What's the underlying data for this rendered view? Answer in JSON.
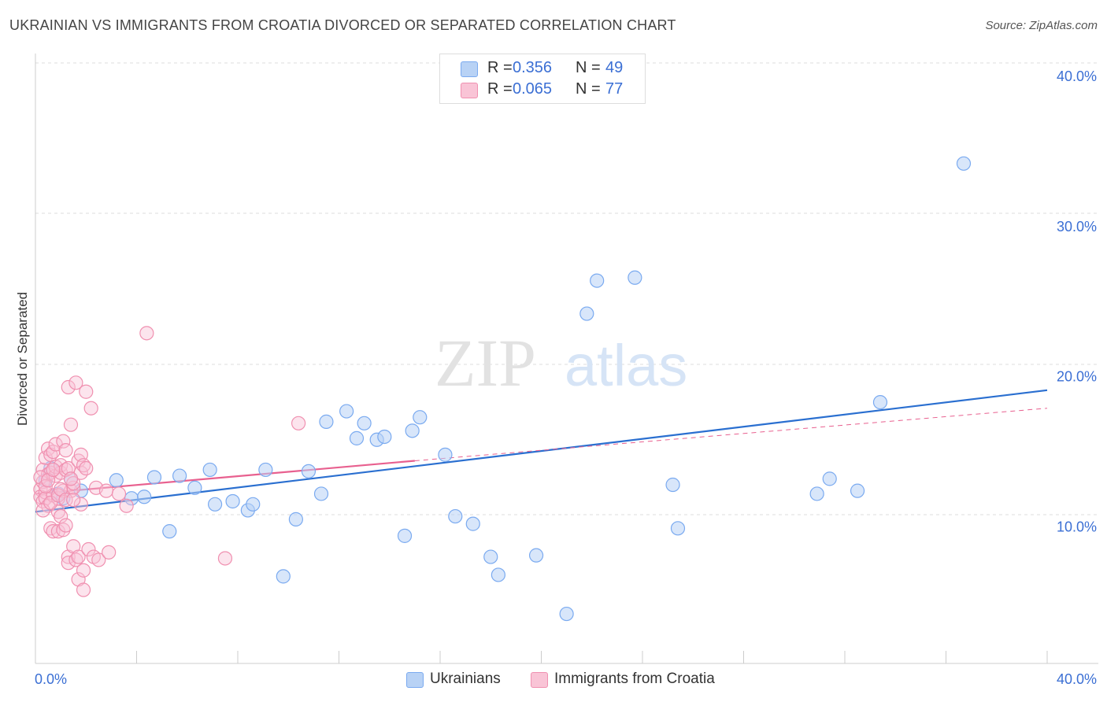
{
  "title": "UKRAINIAN VS IMMIGRANTS FROM CROATIA DIVORCED OR SEPARATED CORRELATION CHART",
  "source": "Source: ZipAtlas.com",
  "watermark": {
    "zip": "ZIP",
    "atlas": "atlas"
  },
  "legend": [
    {
      "r_label": "R =",
      "r_value": "0.356",
      "n_label": "N =",
      "n_value": "49",
      "color": "#7aaaf0",
      "fill": "#b8d2f5"
    },
    {
      "r_label": "R =",
      "r_value": "0.065",
      "n_label": "N =",
      "n_value": "77",
      "color": "#f090b0",
      "fill": "#f9c4d6"
    }
  ],
  "bottom_legend": [
    {
      "label": "Ukrainians",
      "fill": "#b8d2f5",
      "color": "#7aaaf0"
    },
    {
      "label": "Immigrants from Croatia",
      "fill": "#f9c4d6",
      "color": "#f090b0"
    }
  ],
  "chart_data": {
    "type": "scatter",
    "ylabel": "Divorced or Separated",
    "xlabel": "",
    "xlim": [
      0,
      40
    ],
    "ylim": [
      0,
      40
    ],
    "x_tick_labels": [
      "0.0%",
      "40.0%"
    ],
    "y_tick_labels": [
      "10.0%",
      "20.0%",
      "30.0%",
      "40.0%"
    ],
    "y_ticks": [
      10,
      20,
      30,
      40
    ],
    "grid": true,
    "series": [
      {
        "name": "Ukrainians",
        "color": "#7aaaf0",
        "line_color": "#2a6fd0",
        "trend": {
          "x": [
            0,
            40
          ],
          "y": [
            10.1,
            18.2
          ]
        },
        "points": [
          [
            0.9,
            11.3
          ],
          [
            1.4,
            12.3
          ],
          [
            1.8,
            11.5
          ],
          [
            3.2,
            12.2
          ],
          [
            3.8,
            11.0
          ],
          [
            4.3,
            11.1
          ],
          [
            4.7,
            12.4
          ],
          [
            5.3,
            8.8
          ],
          [
            5.7,
            12.5
          ],
          [
            6.3,
            11.7
          ],
          [
            6.9,
            12.9
          ],
          [
            7.1,
            10.6
          ],
          [
            7.8,
            10.8
          ],
          [
            8.4,
            10.2
          ],
          [
            8.6,
            10.6
          ],
          [
            9.1,
            12.9
          ],
          [
            9.8,
            5.8
          ],
          [
            10.3,
            9.6
          ],
          [
            10.8,
            12.8
          ],
          [
            11.3,
            11.3
          ],
          [
            11.5,
            16.1
          ],
          [
            12.3,
            16.8
          ],
          [
            12.7,
            15.0
          ],
          [
            13.0,
            16.0
          ],
          [
            13.5,
            14.9
          ],
          [
            13.8,
            15.1
          ],
          [
            14.6,
            8.5
          ],
          [
            14.9,
            15.5
          ],
          [
            15.2,
            16.4
          ],
          [
            16.2,
            13.9
          ],
          [
            16.6,
            9.8
          ],
          [
            17.3,
            9.3
          ],
          [
            18.0,
            7.1
          ],
          [
            18.3,
            5.9
          ],
          [
            19.8,
            7.2
          ],
          [
            21.0,
            3.3
          ],
          [
            21.8,
            23.3
          ],
          [
            22.2,
            25.5
          ],
          [
            23.7,
            25.7
          ],
          [
            25.2,
            11.9
          ],
          [
            25.4,
            9.0
          ],
          [
            30.9,
            11.3
          ],
          [
            31.4,
            12.3
          ],
          [
            32.5,
            11.5
          ],
          [
            33.4,
            17.4
          ],
          [
            36.7,
            33.3
          ],
          [
            0.4,
            12.2
          ],
          [
            0.6,
            13.0
          ],
          [
            1.1,
            11.0
          ]
        ]
      },
      {
        "name": "Immigrants from Croatia",
        "color": "#f090b0",
        "line_color": "#e8608f",
        "trend": {
          "x": [
            0,
            15
          ],
          "y": [
            11.3,
            13.5
          ]
        },
        "trend_ext": {
          "x": [
            15,
            40
          ],
          "y": [
            13.5,
            17.0
          ]
        },
        "points": [
          [
            0.2,
            11.6
          ],
          [
            0.2,
            11.1
          ],
          [
            0.3,
            12.1
          ],
          [
            0.3,
            10.8
          ],
          [
            0.3,
            12.9
          ],
          [
            0.4,
            11.4
          ],
          [
            0.4,
            13.7
          ],
          [
            0.4,
            11.0
          ],
          [
            0.5,
            14.3
          ],
          [
            0.5,
            12.6
          ],
          [
            0.5,
            10.5
          ],
          [
            0.6,
            9.0
          ],
          [
            0.6,
            12.7
          ],
          [
            0.6,
            13.9
          ],
          [
            0.7,
            11.2
          ],
          [
            0.7,
            14.1
          ],
          [
            0.7,
            8.8
          ],
          [
            0.8,
            12.5
          ],
          [
            0.8,
            13.1
          ],
          [
            0.8,
            14.6
          ],
          [
            0.9,
            10.1
          ],
          [
            0.9,
            11.0
          ],
          [
            0.9,
            8.8
          ],
          [
            1.0,
            12.7
          ],
          [
            1.0,
            9.8
          ],
          [
            1.0,
            13.2
          ],
          [
            1.1,
            14.8
          ],
          [
            1.1,
            11.5
          ],
          [
            1.1,
            8.9
          ],
          [
            1.2,
            12.9
          ],
          [
            1.2,
            9.2
          ],
          [
            1.2,
            14.2
          ],
          [
            1.3,
            13.0
          ],
          [
            1.3,
            18.4
          ],
          [
            1.3,
            7.1
          ],
          [
            1.3,
            6.7
          ],
          [
            1.4,
            11.5
          ],
          [
            1.4,
            15.9
          ],
          [
            1.5,
            11.7
          ],
          [
            1.5,
            7.8
          ],
          [
            1.5,
            12.0
          ],
          [
            1.6,
            6.9
          ],
          [
            1.6,
            18.7
          ],
          [
            1.7,
            13.5
          ],
          [
            1.7,
            7.1
          ],
          [
            1.7,
            5.6
          ],
          [
            1.8,
            13.9
          ],
          [
            1.8,
            12.7
          ],
          [
            1.8,
            10.6
          ],
          [
            1.9,
            13.2
          ],
          [
            1.9,
            6.2
          ],
          [
            1.9,
            4.9
          ],
          [
            2.0,
            18.1
          ],
          [
            2.0,
            13.0
          ],
          [
            2.1,
            7.6
          ],
          [
            2.2,
            17.0
          ],
          [
            2.3,
            7.1
          ],
          [
            2.4,
            11.7
          ],
          [
            2.5,
            6.9
          ],
          [
            2.8,
            11.5
          ],
          [
            2.9,
            7.4
          ],
          [
            3.3,
            11.3
          ],
          [
            3.6,
            10.5
          ],
          [
            4.4,
            22.0
          ],
          [
            7.5,
            7.0
          ],
          [
            10.4,
            16.0
          ],
          [
            0.2,
            12.4
          ],
          [
            0.3,
            10.2
          ],
          [
            0.4,
            11.8
          ],
          [
            0.5,
            12.2
          ],
          [
            0.6,
            10.7
          ],
          [
            0.7,
            12.9
          ],
          [
            0.9,
            11.2
          ],
          [
            1.0,
            11.6
          ],
          [
            1.2,
            10.9
          ],
          [
            1.4,
            12.3
          ],
          [
            1.5,
            10.9
          ]
        ]
      }
    ]
  }
}
